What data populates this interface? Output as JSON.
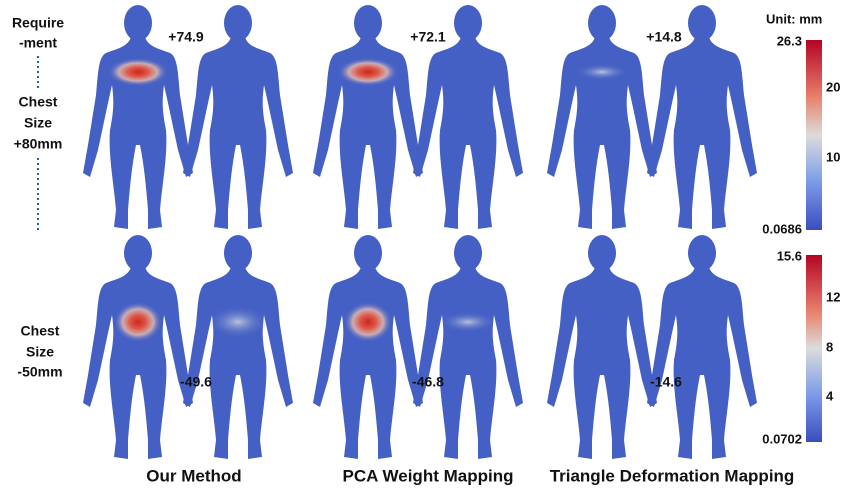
{
  "requirement_label": [
    "Require",
    "-ment"
  ],
  "unit": "Unit: mm",
  "rows": [
    {
      "label": [
        "Chest",
        "Size",
        "+80mm"
      ],
      "deltas": [
        "+74.9",
        "+72.1",
        "+14.8"
      ],
      "colorbar": {
        "max": "26.3",
        "min": "0.0686",
        "ticks": [
          "20",
          "10"
        ]
      }
    },
    {
      "label": [
        "Chest",
        "Size",
        "-50mm"
      ],
      "deltas": [
        "-49.6",
        "-46.8",
        "-14.6"
      ],
      "colorbar": {
        "max": "15.6",
        "min": "0.0702",
        "ticks": [
          "12",
          "8",
          "4"
        ]
      }
    }
  ],
  "methods": [
    "Our Method",
    "PCA Weight Mapping",
    "Triangle Deformation Mapping"
  ]
}
